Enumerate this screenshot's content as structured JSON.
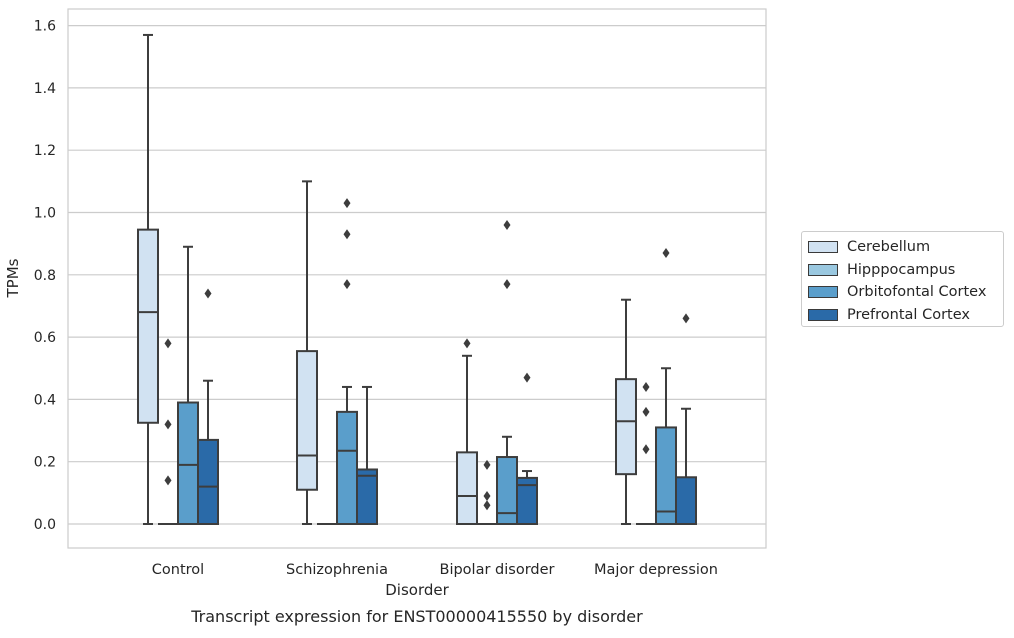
{
  "chart_data": {
    "type": "box",
    "title": "Transcript expression for ENST00000415550 by disorder",
    "xlabel": "Disorder",
    "ylabel": "TPMs",
    "ylim": [
      -0.075,
      1.65
    ],
    "yticks": [
      "0.0",
      "0.2",
      "0.4",
      "0.6",
      "0.8",
      "1.0",
      "1.2",
      "1.4",
      "1.6"
    ],
    "ytick_values": [
      0.0,
      0.2,
      0.4,
      0.6,
      0.8,
      1.0,
      1.2,
      1.4,
      1.6
    ],
    "grid": true,
    "legend_position": "outside-right",
    "categories": [
      "Control",
      "Schizophrenia",
      "Bipolar disorder",
      "Major depression"
    ],
    "series": [
      {
        "name": "Cerebellum",
        "color": "#d1e2f2",
        "boxes": [
          {
            "min": 0.0,
            "q1": 0.325,
            "median": 0.68,
            "q3": 0.945,
            "max": 1.57,
            "outliers": []
          },
          {
            "min": 0.0,
            "q1": 0.11,
            "median": 0.22,
            "q3": 0.555,
            "max": 1.1,
            "outliers": []
          },
          {
            "min": 0.0,
            "q1": 0.0,
            "median": 0.09,
            "q3": 0.23,
            "max": 0.54,
            "outliers": [
              0.58
            ]
          },
          {
            "min": 0.0,
            "q1": 0.16,
            "median": 0.33,
            "q3": 0.465,
            "max": 0.72,
            "outliers": []
          }
        ]
      },
      {
        "name": "Hipppocampus",
        "color": "#9ac8e0",
        "boxes": [
          {
            "min": 0.0,
            "q1": 0.0,
            "median": 0.0,
            "q3": 0.0,
            "max": 0.0,
            "outliers": [
              0.14,
              0.32,
              0.58
            ]
          },
          {
            "min": 0.0,
            "q1": 0.0,
            "median": 0.0,
            "q3": 0.0,
            "max": 0.0,
            "outliers": []
          },
          {
            "min": 0.0,
            "q1": 0.0,
            "median": 0.0,
            "q3": 0.0,
            "max": 0.0,
            "outliers": [
              0.06,
              0.09,
              0.19
            ]
          },
          {
            "min": 0.0,
            "q1": 0.0,
            "median": 0.0,
            "q3": 0.0,
            "max": 0.0,
            "outliers": [
              0.24,
              0.36,
              0.44
            ]
          }
        ]
      },
      {
        "name": "Orbitofontal Cortex",
        "color": "#5a9ecb",
        "boxes": [
          {
            "min": 0.0,
            "q1": 0.0,
            "median": 0.19,
            "q3": 0.39,
            "max": 0.89,
            "outliers": []
          },
          {
            "min": 0.0,
            "q1": 0.0,
            "median": 0.235,
            "q3": 0.36,
            "max": 0.44,
            "outliers": [
              0.77,
              0.93,
              1.03
            ]
          },
          {
            "min": 0.0,
            "q1": 0.0,
            "median": 0.035,
            "q3": 0.215,
            "max": 0.28,
            "outliers": [
              0.77,
              0.96
            ]
          },
          {
            "min": 0.0,
            "q1": 0.0,
            "median": 0.04,
            "q3": 0.31,
            "max": 0.5,
            "outliers": [
              0.87
            ]
          }
        ]
      },
      {
        "name": "Prefrontal Cortex",
        "color": "#2a6aa8",
        "boxes": [
          {
            "min": 0.0,
            "q1": 0.0,
            "median": 0.12,
            "q3": 0.27,
            "max": 0.46,
            "outliers": [
              0.74
            ]
          },
          {
            "min": 0.0,
            "q1": 0.0,
            "median": 0.155,
            "q3": 0.175,
            "max": 0.44,
            "outliers": []
          },
          {
            "min": 0.0,
            "q1": 0.0,
            "median": 0.125,
            "q3": 0.148,
            "max": 0.17,
            "outliers": [
              0.47
            ]
          },
          {
            "min": 0.0,
            "q1": 0.0,
            "median": 0.0,
            "q3": 0.15,
            "max": 0.37,
            "outliers": [
              0.66
            ]
          }
        ]
      }
    ]
  }
}
